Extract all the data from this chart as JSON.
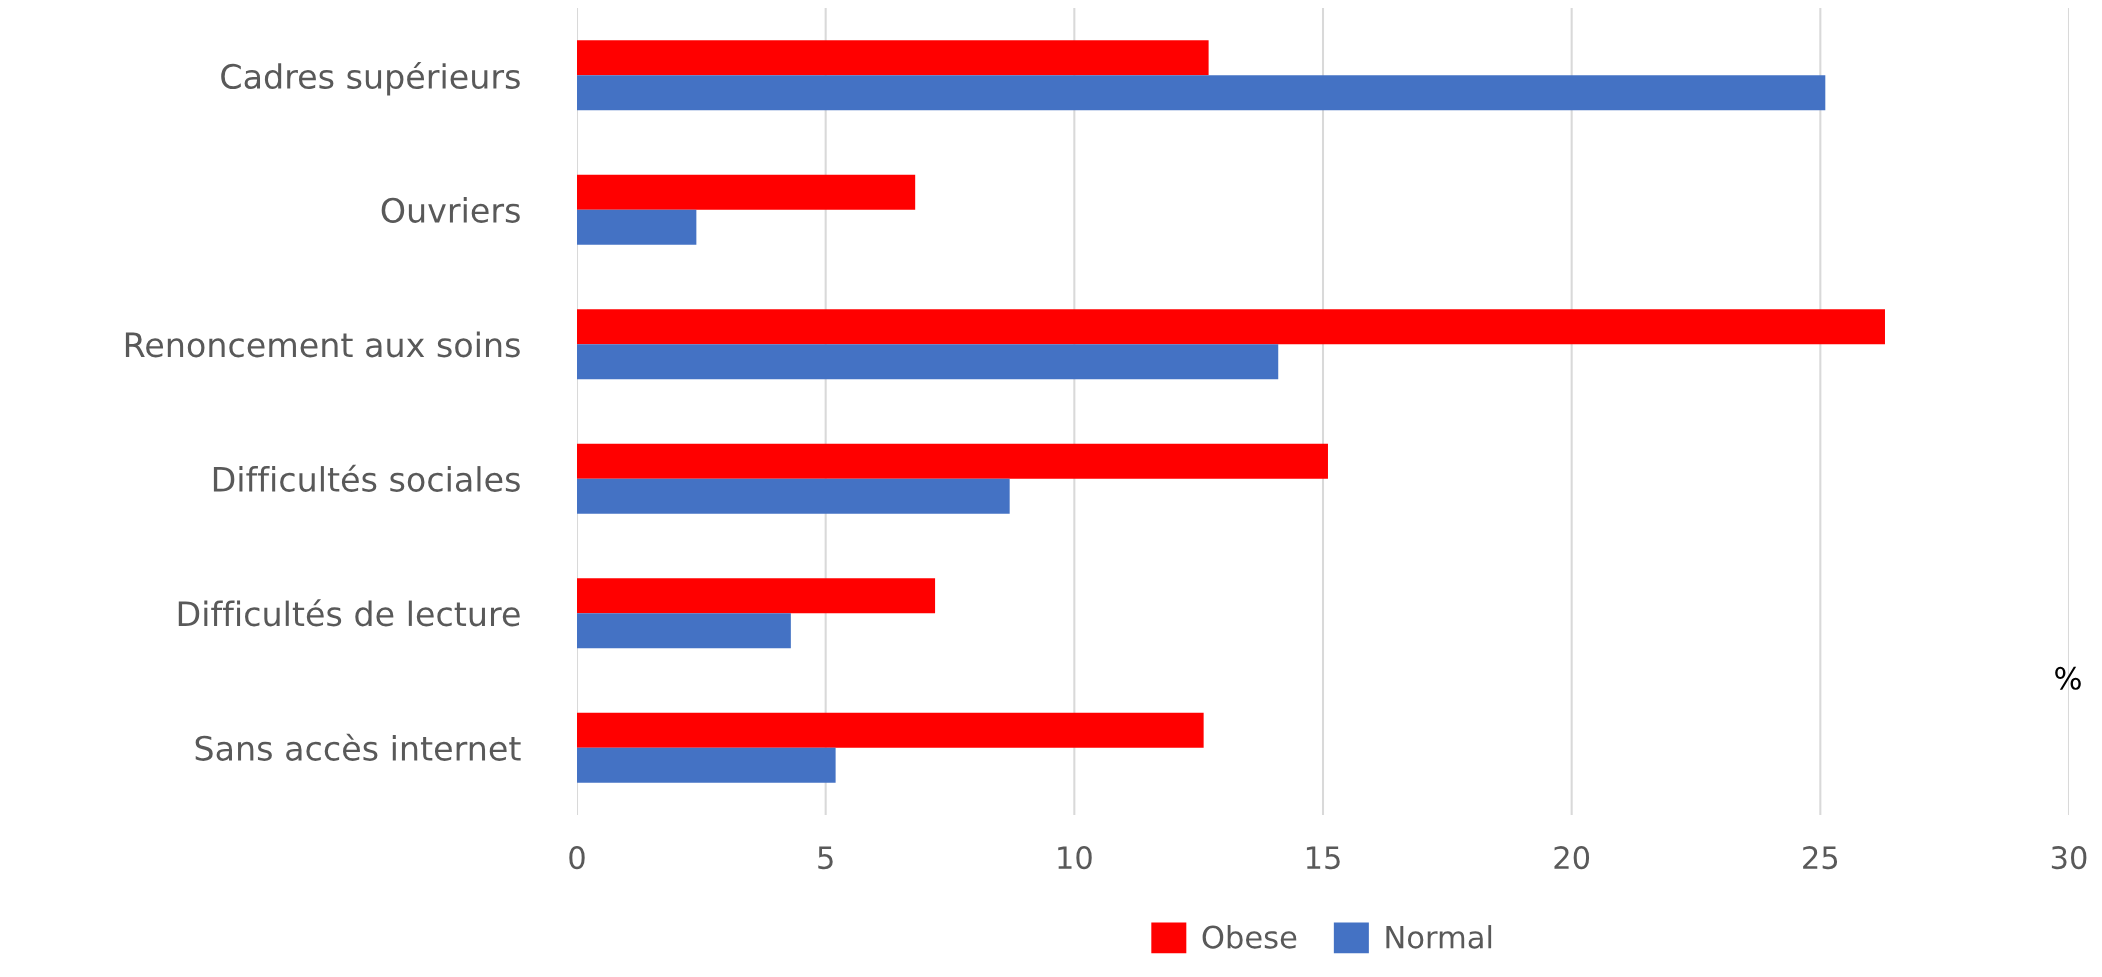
{
  "chart_data": {
    "type": "bar",
    "orientation": "horizontal",
    "categories": [
      "Cadres supérieurs",
      "Ouvriers",
      "Renoncement aux soins",
      "Difficultés sociales",
      "Difficultés de lecture",
      "Sans accès internet"
    ],
    "series": [
      {
        "name": "Obese",
        "color": "#ff0000",
        "values": [
          12.7,
          6.8,
          26.3,
          15.1,
          7.2,
          12.6
        ]
      },
      {
        "name": "Normal",
        "color": "#4472c4",
        "values": [
          25.1,
          2.4,
          14.1,
          8.7,
          4.3,
          5.2
        ]
      }
    ],
    "xlim": [
      0,
      30
    ],
    "xticks": [
      0,
      5,
      10,
      15,
      20,
      25,
      30
    ],
    "grid": "x",
    "legend": "bottom",
    "annotations": [
      "%"
    ]
  }
}
